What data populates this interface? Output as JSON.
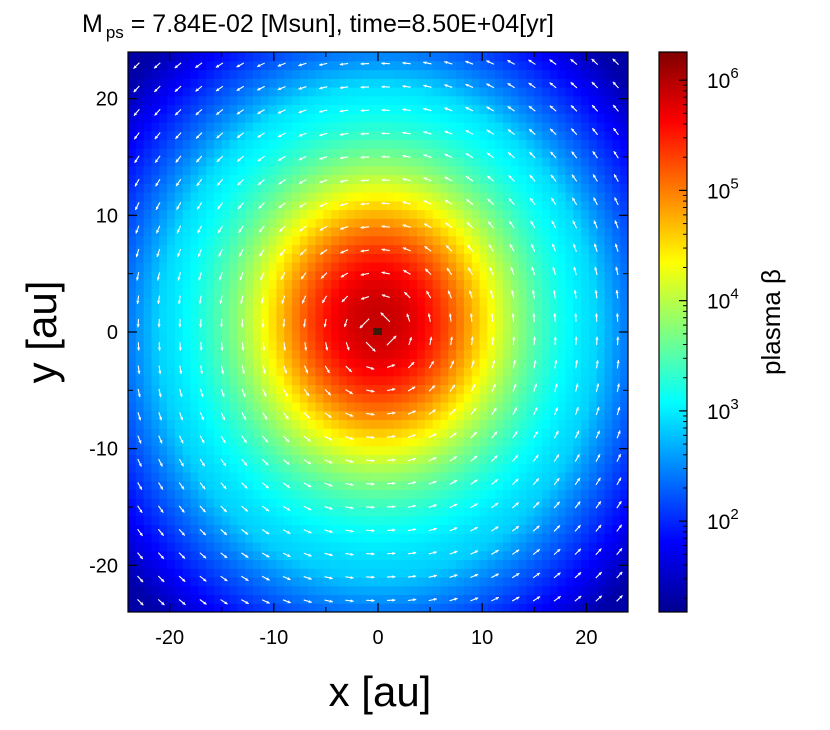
{
  "chart_data": {
    "type": "heatmap",
    "title": {
      "prefix": "M",
      "subscript": "ps",
      "rest": " = 7.84E-02 [Msun], time=8.50E+04[yr]"
    },
    "xlabel": "x [au]",
    "ylabel": "y [au]",
    "xlim": [
      -24,
      24
    ],
    "ylim": [
      -24,
      24
    ],
    "xticks": [
      -20,
      -10,
      0,
      10,
      20
    ],
    "xtick_labels": [
      "-20",
      "-10",
      "0",
      "10",
      "20"
    ],
    "yticks": [
      -20,
      -10,
      0,
      10,
      20
    ],
    "ytick_labels": [
      "-20",
      "-10",
      "0",
      "10",
      "20"
    ],
    "colorbar": {
      "label": "plasma β",
      "scale": "log",
      "range": [
        15,
        1800000
      ],
      "ticks": [
        {
          "value": 100,
          "base": "10",
          "exp": "2"
        },
        {
          "value": 1000,
          "base": "10",
          "exp": "3"
        },
        {
          "value": 10000,
          "base": "10",
          "exp": "4"
        },
        {
          "value": 100000,
          "base": "10",
          "exp": "5"
        },
        {
          "value": 1000000,
          "base": "10",
          "exp": "6"
        }
      ],
      "colormap": "jet"
    },
    "field": {
      "description_of_values": "plasma beta, peak near origin",
      "peak_value": 800000,
      "peak_location": [
        0,
        1
      ],
      "background_value": 500,
      "corner_value": 20,
      "grid_cells": 64
    },
    "overlay": {
      "type": "vector-field",
      "color": "#ffffff",
      "rotation": "counter-clockwise",
      "grid_spacing": 2,
      "center": [
        0,
        0
      ]
    },
    "sink_marker": {
      "location": [
        0,
        0
      ],
      "color": "#3a1a0a"
    }
  }
}
